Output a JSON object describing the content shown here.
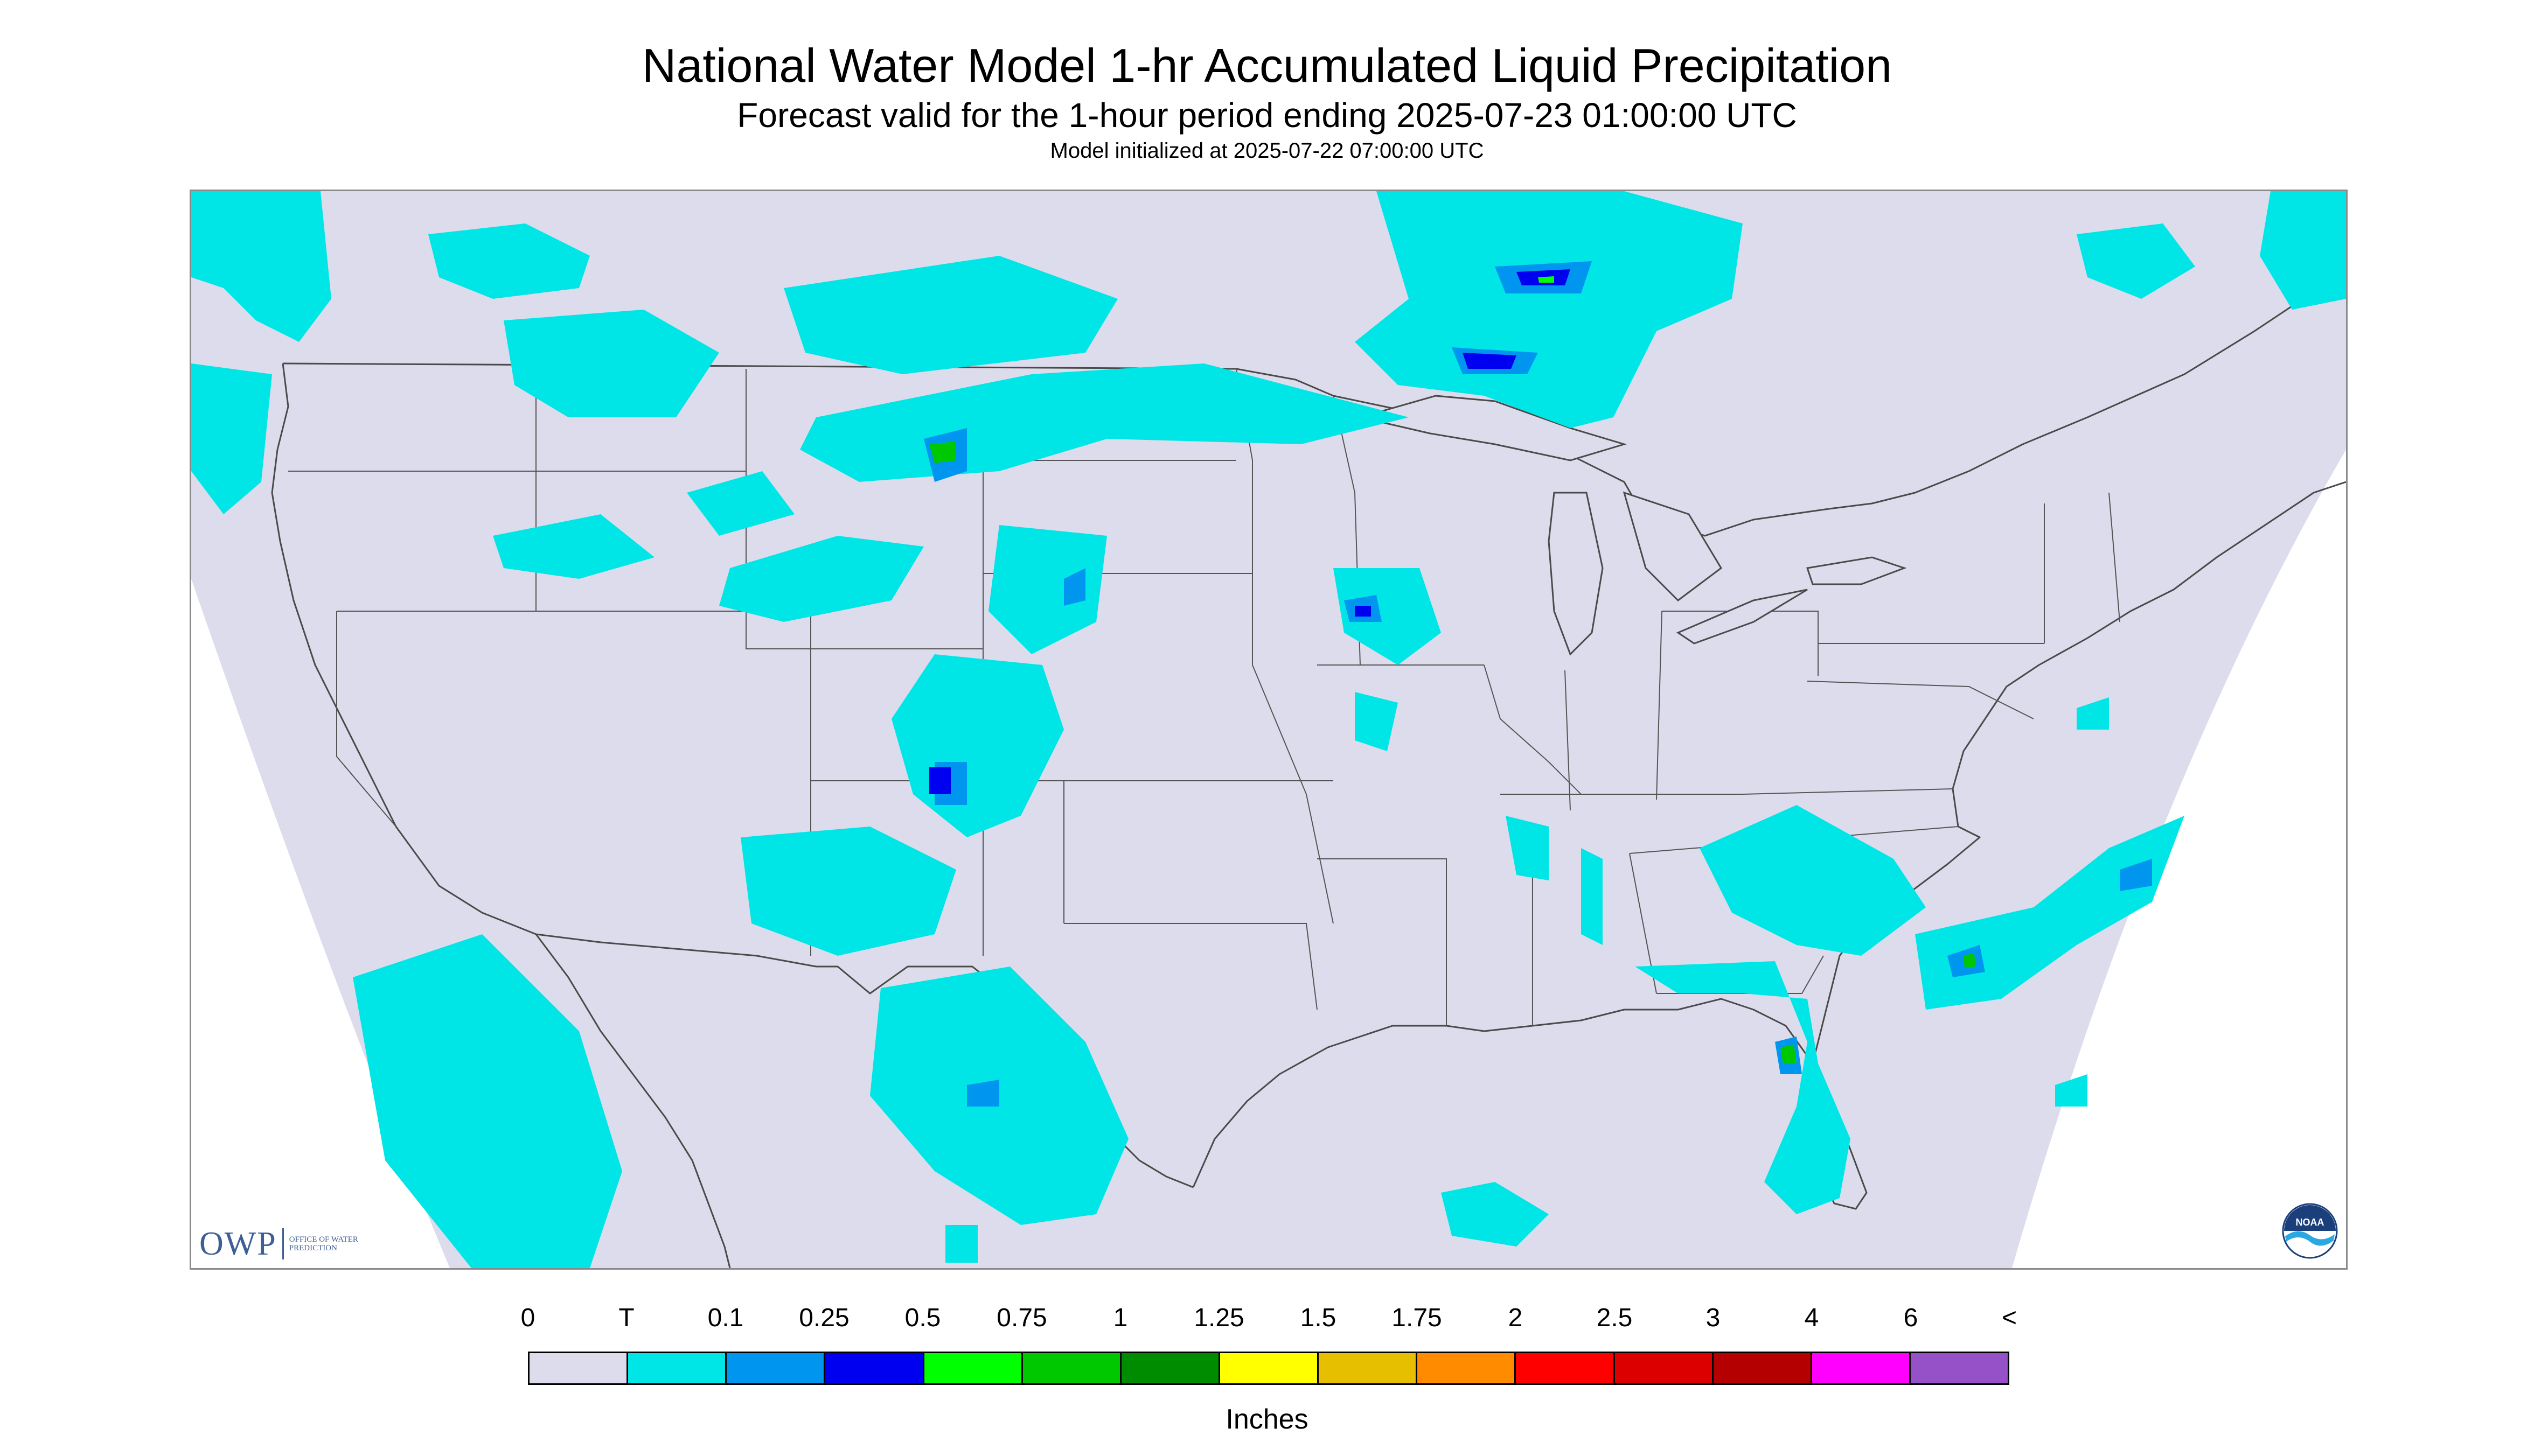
{
  "header": {
    "title": "National Water Model 1-hr Accumulated Liquid Precipitation",
    "subtitle": "Forecast valid for the 1-hour period ending 2025-07-23 01:00:00 UTC",
    "init_note": "Model initialized at 2025-07-22 07:00:00 UTC"
  },
  "map": {
    "region": "Continental United States with parts of Canada and Mexico",
    "background_color": "#dcdcec",
    "outside_color": "#ffffff",
    "border_color": "#4a4a4a"
  },
  "logos": {
    "owp_mark": "OWP",
    "owp_text": "OFFICE OF WATER PREDICTION",
    "noaa_text": "NOAA"
  },
  "legend": {
    "units": "Inches",
    "labels": [
      "0",
      "T",
      "0.1",
      "0.25",
      "0.5",
      "0.75",
      "1",
      "1.25",
      "1.5",
      "1.75",
      "2",
      "2.5",
      "3",
      "4",
      "6",
      "<"
    ],
    "colors": [
      "#dcdcec",
      "#00e6e6",
      "#0096f0",
      "#0000f0",
      "#00ff00",
      "#00c800",
      "#008c00",
      "#ffff00",
      "#e6c000",
      "#ff8c00",
      "#ff0000",
      "#dc0000",
      "#b40000",
      "#ff00ff",
      "#9650c8"
    ]
  }
}
